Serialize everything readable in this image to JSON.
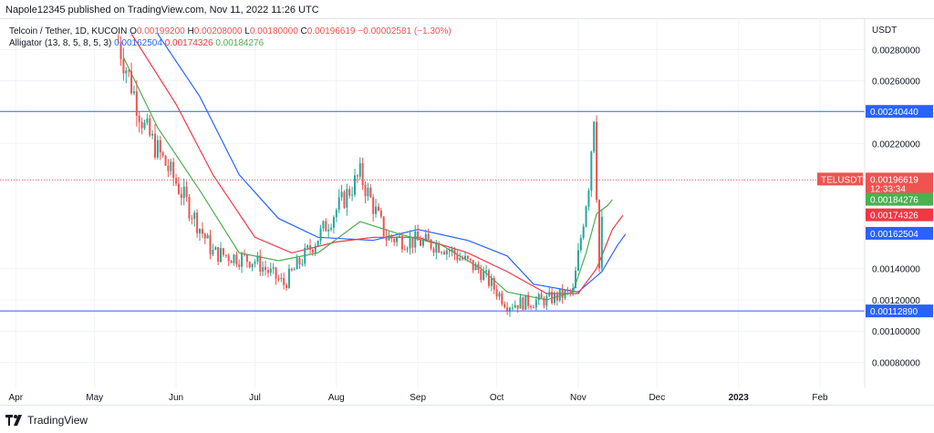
{
  "header": {
    "published": "Napole12345 published on TradingView.com, Nov 11, 2022 11:26 UTC"
  },
  "legend": {
    "symbol": "Telcoin / Tether, 1D, KUCOIN",
    "o_label": "O",
    "o_value": "0.00199200",
    "h_label": "H",
    "h_value": "0.00208000",
    "l_label": "L",
    "l_value": "0.00180000",
    "c_label": "C",
    "c_value": "0.00196619",
    "change": "−0.00002581 (−1.30%)",
    "indicator": "Alligator (13, 8, 5, 8, 5, 3)",
    "jaw": "0.00162504",
    "teeth": "0.00174326",
    "lips": "0.00184276"
  },
  "footer": {
    "brand": "TradingView"
  },
  "colors": {
    "up": "#26a69a",
    "down": "#ef5350",
    "jaw": "#2962ff",
    "teeth": "#f23645",
    "lips": "#4caf50",
    "hline": "#2962ff"
  },
  "chart_data": {
    "type": "candlestick",
    "currency": "USDT",
    "y_ticks": [
      "0.00080000",
      "0.00100000",
      "0.00120000",
      "0.00140000",
      "0.00220000",
      "0.00260000",
      "0.00280000"
    ],
    "x_ticks": [
      "Apr",
      "May",
      "Jun",
      "Jul",
      "Aug",
      "Sep",
      "Oct",
      "Nov",
      "Dec",
      "2023",
      "Feb"
    ],
    "x_start": "2022-03-26",
    "x_end": "2023-02-18",
    "ylim": [
      0.00064,
      0.003
    ],
    "hlines": [
      {
        "value": 0.0024044,
        "label": "0.00240440"
      },
      {
        "value": 0.0011289,
        "label": "0.00112890"
      }
    ],
    "price_line": {
      "value": 0.00196619,
      "symbol": "TELUSDT",
      "label": "0.00196619",
      "countdown": "12:33:34"
    },
    "alligator_labels": [
      {
        "value": 0.00184276,
        "label": "0.00184276",
        "color": "#4caf50"
      },
      {
        "value": 0.00174326,
        "label": "0.00174326",
        "color": "#f23645"
      },
      {
        "value": 0.00162504,
        "label": "0.00162504",
        "color": "#2962ff"
      }
    ],
    "key_points": [
      [
        "2022-05-10",
        0.00285
      ],
      [
        "2022-05-20",
        0.0023
      ],
      [
        "2022-06-01",
        0.00195
      ],
      [
        "2022-06-15",
        0.0015
      ],
      [
        "2022-07-01",
        0.00145
      ],
      [
        "2022-07-12",
        0.0013
      ],
      [
        "2022-07-25",
        0.0016
      ],
      [
        "2022-08-10",
        0.002
      ],
      [
        "2022-08-20",
        0.0016
      ],
      [
        "2022-09-10",
        0.00155
      ],
      [
        "2022-09-25",
        0.00138
      ],
      [
        "2022-10-05",
        0.00117
      ],
      [
        "2022-10-20",
        0.0012
      ],
      [
        "2022-10-30",
        0.00125
      ],
      [
        "2022-11-05",
        0.00195
      ],
      [
        "2022-11-07",
        0.0024
      ],
      [
        "2022-11-09",
        0.0014
      ],
      [
        "2022-11-11",
        0.00197
      ]
    ],
    "jaw_line": [
      [
        "2022-05-25",
        0.0029
      ],
      [
        "2022-06-10",
        0.0025
      ],
      [
        "2022-06-25",
        0.002
      ],
      [
        "2022-07-10",
        0.00172
      ],
      [
        "2022-07-25",
        0.0016
      ],
      [
        "2022-08-15",
        0.00158
      ],
      [
        "2022-09-01",
        0.00165
      ],
      [
        "2022-09-20",
        0.00158
      ],
      [
        "2022-10-05",
        0.00148
      ],
      [
        "2022-10-15",
        0.0013
      ],
      [
        "2022-11-01",
        0.00125
      ],
      [
        "2022-11-10",
        0.00138
      ],
      [
        "2022-11-16",
        0.00155
      ],
      [
        "2022-11-19",
        0.00162
      ]
    ],
    "teeth_line": [
      [
        "2022-05-15",
        0.0029
      ],
      [
        "2022-06-01",
        0.00245
      ],
      [
        "2022-06-15",
        0.002
      ],
      [
        "2022-07-01",
        0.0016
      ],
      [
        "2022-07-15",
        0.0015
      ],
      [
        "2022-08-01",
        0.00157
      ],
      [
        "2022-08-15",
        0.0016
      ],
      [
        "2022-09-01",
        0.0016
      ],
      [
        "2022-09-20",
        0.0015
      ],
      [
        "2022-10-05",
        0.00138
      ],
      [
        "2022-10-20",
        0.00124
      ],
      [
        "2022-11-01",
        0.00124
      ],
      [
        "2022-11-08",
        0.0014
      ],
      [
        "2022-11-14",
        0.00165
      ],
      [
        "2022-11-18",
        0.00174
      ]
    ],
    "lips_line": [
      [
        "2022-05-12",
        0.00275
      ],
      [
        "2022-05-25",
        0.0023
      ],
      [
        "2022-06-10",
        0.0019
      ],
      [
        "2022-06-25",
        0.0015
      ],
      [
        "2022-07-10",
        0.00145
      ],
      [
        "2022-07-25",
        0.0015
      ],
      [
        "2022-08-10",
        0.0017
      ],
      [
        "2022-08-25",
        0.00162
      ],
      [
        "2022-09-10",
        0.00155
      ],
      [
        "2022-09-25",
        0.0014
      ],
      [
        "2022-10-05",
        0.00125
      ],
      [
        "2022-10-20",
        0.0012
      ],
      [
        "2022-10-30",
        0.00125
      ],
      [
        "2022-11-04",
        0.0015
      ],
      [
        "2022-11-08",
        0.00175
      ],
      [
        "2022-11-12",
        0.0018
      ],
      [
        "2022-11-14",
        0.00184
      ]
    ]
  }
}
